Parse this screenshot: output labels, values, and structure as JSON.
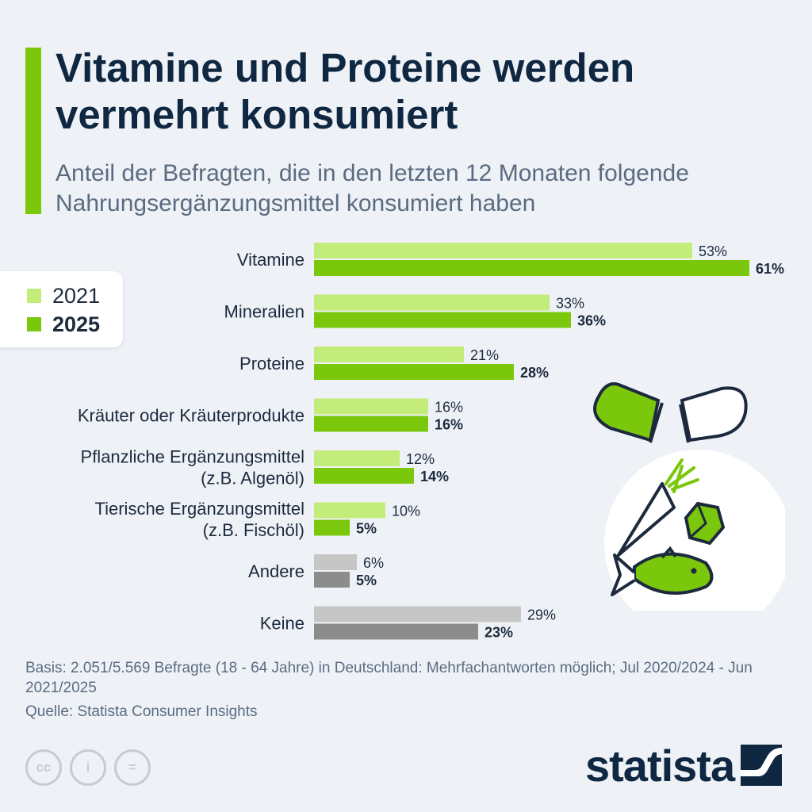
{
  "header": {
    "title": "Vitamine und Proteine werden vermehrt konsumiert",
    "subtitle": "Anteil der Befragten, die in den letzten 12 Monaten folgende Nahrungsergänzungsmittel konsumiert haben"
  },
  "legend": {
    "items": [
      {
        "label": "2021",
        "color": "#c4ec7a"
      },
      {
        "label": "2025",
        "color": "#7ac70c"
      }
    ]
  },
  "colors": {
    "light_green": "#c4ec7a",
    "dark_green": "#7ac70c",
    "light_grey": "#c6c6c6",
    "dark_grey": "#8c8c8c",
    "accent": "#7ac70c",
    "navy": "#0f2741"
  },
  "chart_data": {
    "type": "bar",
    "orientation": "horizontal",
    "categories": [
      [
        "Vitamine"
      ],
      [
        "Mineralien"
      ],
      [
        "Proteine"
      ],
      [
        "Kräuter oder Kräuterprodukte"
      ],
      [
        "Pflanzliche Ergänzungsmittel",
        "(z.B. Algenöl)"
      ],
      [
        "Tierische Ergänzungsmittel",
        "(z.B. Fischöl)"
      ],
      [
        "Andere"
      ],
      [
        "Keine"
      ]
    ],
    "series": [
      {
        "name": "2021",
        "values": [
          53,
          33,
          21,
          16,
          12,
          10,
          6,
          29
        ],
        "labels": [
          "53%",
          "33%",
          "21%",
          "16%",
          "12%",
          "10%",
          "6%",
          "29%"
        ]
      },
      {
        "name": "2025",
        "values": [
          61,
          36,
          28,
          16,
          14,
          5,
          5,
          23
        ],
        "labels": [
          "61%",
          "36%",
          "28%",
          "16%",
          "14%",
          "5%",
          "5%",
          "23%"
        ]
      }
    ],
    "grey_categories": [
      6,
      7
    ],
    "unit": "%",
    "xlim": [
      0,
      61
    ],
    "legend_position": "left"
  },
  "footer": {
    "basis": "Basis: 2.051/5.569 Befragte (18 - 64 Jahre) in Deutschland: Mehrfachantworten möglich; Jul 2020/2024 - Jun 2021/2025",
    "source": "Quelle: Statista Consumer Insights",
    "brand": "statista",
    "license_icons": [
      "cc",
      "i",
      "="
    ]
  }
}
